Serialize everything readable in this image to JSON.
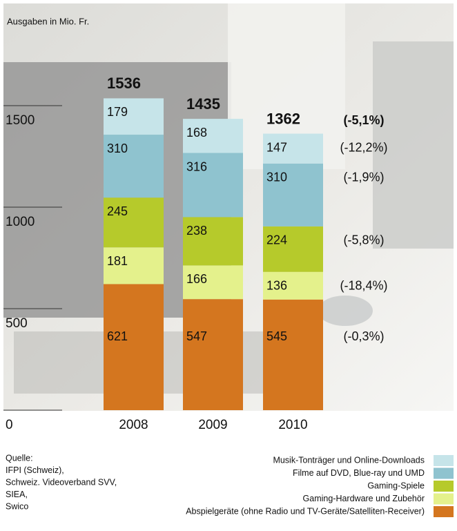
{
  "chart_data": {
    "type": "stacked-bar",
    "y_label": "Ausgaben in Mio. Fr.",
    "categories": [
      "2008",
      "2009",
      "2010"
    ],
    "ylim": [
      0,
      2000
    ],
    "yticks": [
      0,
      500,
      1000,
      1500
    ],
    "totals": [
      1536,
      1435,
      1362
    ],
    "total_change": "(-5,1%)",
    "series": [
      {
        "name": "Abspielgeräte (ohne Radio und TV-Geräte/Satelliten-Receiver)",
        "color": "#d4761f",
        "values": [
          621,
          547,
          545
        ],
        "change": "(-0,3%)"
      },
      {
        "name": "Gaming-Hardware und Zubehör",
        "color": "#e4f18c",
        "values": [
          181,
          166,
          136
        ],
        "change": "(-18,4%)"
      },
      {
        "name": "Gaming-Spiele",
        "color": "#b6ca2b",
        "values": [
          245,
          238,
          224
        ],
        "change": "(-5,8%)"
      },
      {
        "name": "Filme auf DVD, Blue-ray und UMD",
        "color": "#8fc3cf",
        "values": [
          310,
          316,
          310
        ],
        "change": "(-1,9%)"
      },
      {
        "name": "Musik-Tonträger und Online-Downloads",
        "color": "#c6e4e9",
        "values": [
          179,
          168,
          147
        ],
        "change": "(-12,2%)"
      }
    ],
    "source": [
      "Quelle:",
      "IFPI (Schweiz),",
      "Schweiz. Videoverband SVV,",
      "SIEA,",
      "Swico"
    ]
  }
}
